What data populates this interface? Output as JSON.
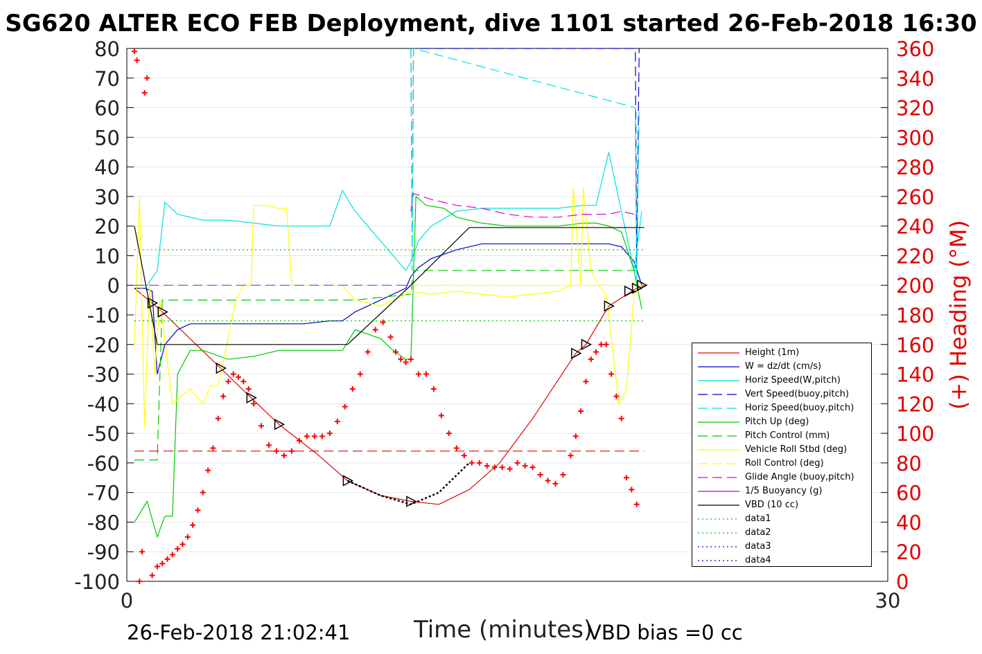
{
  "title": "SG620 ALTER ECO FEB Deployment, dive 1101 started 26-Feb-2018 16:30",
  "footer": {
    "date": "26-Feb-2018 21:02:41",
    "vbd_bias": "VBD bias =0 cc"
  },
  "chart_data": {
    "type": "line",
    "title": "SG620 ALTER ECO FEB Deployment, dive 1101 started 26-Feb-2018 16:30",
    "xlabel": "Time (minutes)",
    "ylabel": "",
    "ylabel_right": "(+) Heading (°M)",
    "xlim": [
      0,
      30
    ],
    "ylim": [
      -100,
      80
    ],
    "ylim_right": [
      0,
      360
    ],
    "x_ticks": [
      "0",
      "30"
    ],
    "y_ticks": [
      "-100",
      "-90",
      "-80",
      "-70",
      "-60",
      "-50",
      "-40",
      "-30",
      "-20",
      "-10",
      "0",
      "10",
      "20",
      "30",
      "40",
      "50",
      "60",
      "70",
      "80"
    ],
    "y_ticks_right": [
      "0",
      "20",
      "40",
      "60",
      "80",
      "100",
      "120",
      "140",
      "160",
      "180",
      "200",
      "220",
      "240",
      "260",
      "280",
      "300",
      "320",
      "340",
      "360"
    ],
    "grid": "horizontal",
    "legend_position": "bottom-right",
    "colors": {
      "height": "#e00000",
      "w": "#0000c8",
      "horiz_speed": "#00e0e0",
      "vert_speed_model": "#0000c8",
      "horiz_speed_model": "#00e0e0",
      "pitch_up": "#00c800",
      "pitch_control": "#00c800",
      "roll": "#ffff00",
      "roll_control": "#ffff00",
      "glide_angle": "#e000e0",
      "buoyancy": "#c800c8",
      "vbd": "#000000",
      "heading": "#ff0000"
    },
    "legend": [
      "Height (1m)",
      "W = dz/dt (cm/s)",
      "Horiz Speed(W,pitch)",
      "Vert Speed(buoy,pitch)",
      "Horiz Speed(buoy,pitch)",
      "Pitch Up (deg)",
      "Pitch Control (mm)",
      "Vehicle Roll Stbd (deg)",
      "Roll Control (deg)",
      "Glide Angle (buoy,pitch)",
      "1/5 Buoyancy (g)",
      "VBD (10 cc)",
      "data1",
      "data2",
      "data3",
      "data4"
    ],
    "series": [
      {
        "name": "Height (1m)",
        "axis": "left",
        "x": [
          0.3,
          1.0,
          1.4,
          3.7,
          4.9,
          6.0,
          7.5,
          8.7,
          10.0,
          11.2,
          12.3,
          13.5,
          14.7,
          16.0,
          17.7,
          18.1,
          19.0,
          20.1,
          20.4
        ],
        "y": [
          -1,
          -6,
          -9,
          -28,
          -38,
          -47,
          -57,
          -66,
          -71,
          -73,
          -74,
          -69,
          -60,
          -45,
          -23,
          -20,
          -7,
          -1,
          0
        ]
      },
      {
        "name": "W = dz/dt (cm/s)",
        "axis": "left",
        "x": [
          0.3,
          0.7,
          1.0,
          1.2,
          1.5,
          2.0,
          2.5,
          3.0,
          4.0,
          5.0,
          6.0,
          7.0,
          8.0,
          8.5,
          9.0,
          9.5,
          10.0,
          10.5,
          11.0,
          11.2,
          11.5,
          12.0,
          13.0,
          14.0,
          15.0,
          16.0,
          17.0,
          18.0,
          19.0,
          19.5,
          20.0,
          20.3
        ],
        "y": [
          -1,
          -1,
          -2,
          -30,
          -20,
          -15,
          -13,
          -13,
          -13,
          -13,
          -13,
          -13,
          -12,
          -12,
          -9,
          -7,
          -5,
          -3,
          -1,
          3,
          6,
          9,
          12,
          14,
          14,
          14,
          14,
          14,
          14,
          13,
          8,
          0
        ]
      },
      {
        "name": "Horiz Speed(W,pitch)",
        "axis": "left",
        "x": [
          0.3,
          0.8,
          1.2,
          1.5,
          2.0,
          3.0,
          4.0,
          5.0,
          6.0,
          7.0,
          8.0,
          8.5,
          9.0,
          9.5,
          10.0,
          10.5,
          11.0,
          11.2,
          11.5,
          12.0,
          13.0,
          14.0,
          15.0,
          16.0,
          17.0,
          18.0,
          18.5,
          19.0,
          19.5,
          20.0,
          20.3
        ],
        "y": [
          0,
          0,
          5,
          28,
          24,
          22,
          22,
          21,
          20,
          20,
          20,
          32,
          25,
          20,
          15,
          10,
          5,
          8,
          15,
          20,
          25,
          26,
          26,
          26,
          26,
          27,
          27,
          45,
          25,
          5,
          25
        ]
      },
      {
        "name": "Vert Speed(buoy,pitch)",
        "axis": "left",
        "dashed": true,
        "x": [
          11.2,
          11.25,
          11.3,
          20.05,
          20.1,
          20.2
        ],
        "y": [
          80,
          10,
          80,
          80,
          5,
          80
        ]
      },
      {
        "name": "Horiz Speed(buoy,pitch)",
        "axis": "left",
        "dashed": true,
        "x": [
          11.2,
          11.25,
          11.3,
          20.05,
          20.1,
          20.2
        ],
        "y": [
          80,
          5,
          80,
          60,
          2,
          60
        ]
      },
      {
        "name": "Pitch Up (deg)",
        "axis": "left",
        "x": [
          0.3,
          0.8,
          1.2,
          1.5,
          1.8,
          2.0,
          2.5,
          3.0,
          4.0,
          5.0,
          6.0,
          7.0,
          8.0,
          8.5,
          9.0,
          10.0,
          10.5,
          11.0,
          11.2,
          11.4,
          11.8,
          12.5,
          13.0,
          14.0,
          15.0,
          16.0,
          17.0,
          18.0,
          18.5,
          19.0,
          19.5,
          20.0,
          20.3
        ],
        "y": [
          -80,
          -73,
          -85,
          -78,
          -78,
          -30,
          -22,
          -22,
          -25,
          -24,
          -22,
          -22,
          -22,
          -22,
          -15,
          -18,
          -22,
          -25,
          -25,
          30,
          27,
          26,
          23,
          21,
          20,
          20,
          20,
          21,
          21,
          20,
          18,
          5,
          -8
        ]
      },
      {
        "name": "Pitch Control (mm)",
        "axis": "left",
        "dashed": true,
        "x": [
          0.3,
          1.2,
          1.4,
          9.0,
          11.2,
          11.3,
          20.3
        ],
        "y": [
          -59,
          -59,
          -5,
          -5,
          -3,
          5,
          5
        ]
      },
      {
        "name": "Vehicle Roll Stbd (deg)",
        "axis": "left",
        "x": [
          0.3,
          0.5,
          0.7,
          0.9,
          1.1,
          1.3,
          1.8,
          2.5,
          3.0,
          3.3,
          3.6,
          4.3,
          4.6,
          4.9,
          5.0,
          5.2,
          5.5,
          6.0,
          6.3,
          6.5,
          7.0,
          8.0,
          8.5,
          9.0,
          10.0,
          11.0,
          11.2,
          12.0,
          13.0,
          14.0,
          15.0,
          16.0,
          17.0,
          17.5,
          17.6,
          17.9,
          18.0,
          18.3,
          18.6,
          18.9,
          19.2,
          19.4,
          19.7,
          20.0,
          20.3
        ],
        "y": [
          -20,
          30,
          -48,
          0,
          -30,
          -5,
          -40,
          -35,
          -40,
          -34,
          -34,
          -5,
          0,
          0,
          27,
          27,
          27,
          26,
          26,
          0,
          0,
          0,
          0,
          -5,
          -7,
          -3,
          -2,
          -3,
          -2,
          -3,
          -4,
          -3,
          -2,
          0,
          33,
          0,
          33,
          5,
          0,
          -3,
          -25,
          -40,
          -35,
          -3,
          0
        ]
      },
      {
        "name": "Roll Control (deg)",
        "axis": "left",
        "dashed": true,
        "x": [
          0.3,
          11.2,
          11.3,
          20.3
        ],
        "y": [
          0,
          0,
          0,
          0
        ]
      },
      {
        "name": "Glide Angle (buoy,pitch)",
        "axis": "left",
        "dashed": true,
        "x": [
          11.2,
          11.3,
          12.0,
          13.0,
          14.0,
          15.0,
          16.0,
          17.0,
          18.0,
          19.0,
          19.5,
          20.0
        ],
        "y": [
          25,
          31,
          29,
          27,
          26,
          24,
          23,
          23,
          24,
          24,
          25,
          24
        ]
      },
      {
        "name": "1/5 Buoyancy (g)",
        "axis": "left",
        "dashed": true,
        "x": [
          0.3,
          11.2
        ],
        "y": [
          0,
          0
        ]
      },
      {
        "name": "VBD (10 cc)",
        "axis": "left",
        "x": [
          0.3,
          1.2,
          8.7,
          11.2,
          13.5,
          20.4
        ],
        "y": [
          20,
          -20,
          -20,
          0,
          19.5,
          19.5
        ]
      },
      {
        "name": "data1",
        "axis": "left",
        "dotted": true,
        "x": [
          0.3,
          20.4
        ],
        "y": [
          12,
          12
        ]
      },
      {
        "name": "data2",
        "axis": "left",
        "dotted": true,
        "x": [
          0.3,
          20.4
        ],
        "y": [
          -12,
          -12
        ]
      },
      {
        "name": "data3",
        "axis": "left",
        "dashed": true,
        "x": [
          0.3,
          20.4
        ],
        "y": [
          -56,
          -56
        ]
      },
      {
        "name": "data4",
        "axis": "left",
        "dotted": true,
        "x": [
          8.7,
          10.0,
          11.2,
          12.3,
          13.5
        ],
        "y": [
          -66,
          -71,
          -74,
          -70,
          -60
        ]
      },
      {
        "name": "heading",
        "axis": "right",
        "marker": "+",
        "x": [
          0.3,
          0.4,
          0.5,
          0.6,
          0.7,
          0.8,
          1.0,
          1.2,
          1.4,
          1.6,
          1.8,
          2.0,
          2.2,
          2.4,
          2.6,
          2.8,
          3.0,
          3.2,
          3.4,
          3.6,
          3.8,
          4.0,
          4.2,
          4.4,
          4.6,
          4.8,
          5.0,
          5.3,
          5.6,
          5.9,
          6.2,
          6.5,
          6.8,
          7.1,
          7.4,
          7.7,
          8.0,
          8.3,
          8.6,
          8.9,
          9.2,
          9.5,
          9.8,
          10.1,
          10.4,
          10.6,
          10.8,
          11.0,
          11.2,
          11.5,
          11.8,
          12.1,
          12.4,
          12.7,
          13.0,
          13.3,
          13.6,
          13.9,
          14.2,
          14.5,
          14.8,
          15.1,
          15.4,
          15.7,
          16.0,
          16.3,
          16.6,
          16.9,
          17.2,
          17.5,
          17.7,
          17.9,
          18.1,
          18.3,
          18.5,
          18.7,
          18.9,
          19.1,
          19.3,
          19.5,
          19.7,
          19.9,
          20.1
        ],
        "y": [
          358,
          352,
          0,
          20,
          330,
          340,
          4,
          10,
          12,
          15,
          18,
          22,
          25,
          30,
          38,
          48,
          60,
          75,
          90,
          110,
          125,
          135,
          140,
          138,
          135,
          130,
          120,
          105,
          92,
          88,
          85,
          88,
          95,
          98,
          98,
          98,
          100,
          108,
          118,
          130,
          140,
          155,
          170,
          175,
          165,
          155,
          150,
          148,
          150,
          140,
          140,
          130,
          112,
          100,
          90,
          85,
          80,
          80,
          78,
          77,
          77,
          76,
          80,
          78,
          77,
          72,
          68,
          66,
          72,
          85,
          98,
          115,
          135,
          150,
          155,
          160,
          160,
          140,
          125,
          110,
          70,
          62,
          52
        ]
      }
    ],
    "markers": [
      {
        "x": 1.0,
        "y": -6
      },
      {
        "x": 1.4,
        "y": -9
      },
      {
        "x": 3.7,
        "y": -28
      },
      {
        "x": 4.9,
        "y": -38
      },
      {
        "x": 6.0,
        "y": -47
      },
      {
        "x": 8.7,
        "y": -66
      },
      {
        "x": 11.2,
        "y": -73
      },
      {
        "x": 17.7,
        "y": -23
      },
      {
        "x": 18.1,
        "y": -20
      },
      {
        "x": 19.0,
        "y": -7
      },
      {
        "x": 19.8,
        "y": -2
      },
      {
        "x": 20.1,
        "y": -1
      },
      {
        "x": 20.3,
        "y": 0
      }
    ]
  }
}
